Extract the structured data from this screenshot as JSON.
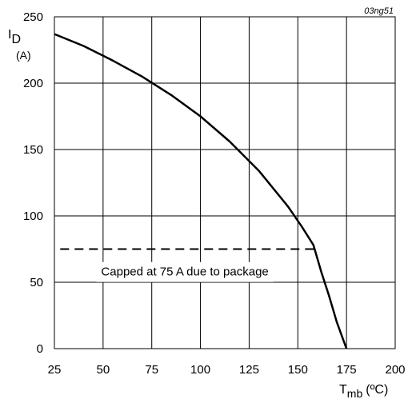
{
  "chart_data": {
    "type": "line",
    "figure_id": "03ng51",
    "title": "",
    "xlabel": {
      "main": "T",
      "sub": "mb",
      "unit": "(ºC)"
    },
    "ylabel": {
      "main": "I",
      "sub": "D",
      "unit": "(A)"
    },
    "xlim": [
      25,
      200
    ],
    "ylim": [
      0,
      250
    ],
    "xticks": [
      25,
      50,
      75,
      100,
      125,
      150,
      175,
      200
    ],
    "yticks": [
      0,
      50,
      100,
      150,
      200,
      250
    ],
    "grid": true,
    "series": [
      {
        "style": "solid",
        "color": "#000000",
        "x": [
          25,
          40,
          55,
          70,
          85,
          100,
          115,
          130,
          145,
          152,
          158,
          162,
          166,
          170,
          175
        ],
        "y": [
          237,
          228,
          217,
          205,
          191,
          175,
          156,
          134,
          107,
          92,
          78,
          58,
          40,
          20,
          0
        ]
      },
      {
        "style": "dashed",
        "color": "#000000",
        "x": [
          28,
          160
        ],
        "y": [
          75,
          75
        ]
      }
    ],
    "annotations": [
      {
        "text": "Capped at 75 A due to package",
        "x": 92,
        "y": 58
      }
    ]
  }
}
